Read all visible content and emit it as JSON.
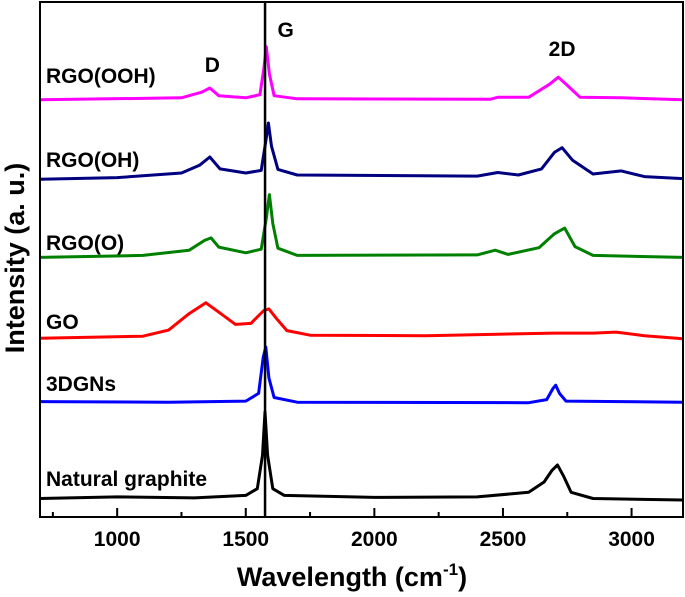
{
  "chart_data": {
    "type": "line",
    "title": "",
    "xlabel": "Wavelength (cm",
    "xlabel_sup": "-1",
    "xlabel_close": ")",
    "ylabel": "Intensity (a. u.)",
    "xlim": [
      700,
      3200
    ],
    "ylim": [
      0,
      100
    ],
    "xticks": [
      1000,
      1500,
      2000,
      2500,
      3000
    ],
    "xtick_labels": [
      "1000",
      "1500",
      "2000",
      "2500",
      "3000"
    ],
    "minor_xticks": [
      750,
      1250,
      1750,
      2250,
      2750
    ],
    "grid": false,
    "y_tick_labels_shown": false,
    "reference_line": {
      "x": 1575,
      "label": "G"
    },
    "peak_labels": [
      {
        "text": "D",
        "x": 1370
      },
      {
        "text": "G",
        "x": 1585
      },
      {
        "text": "2D",
        "x": 2730
      }
    ],
    "series": [
      {
        "name": "Natural graphite",
        "color": "#000000",
        "points": [
          [
            700,
            3.6
          ],
          [
            1000,
            3.9
          ],
          [
            1300,
            3.7
          ],
          [
            1500,
            4.2
          ],
          [
            1545,
            5.5
          ],
          [
            1565,
            12
          ],
          [
            1575,
            20.4
          ],
          [
            1585,
            12
          ],
          [
            1605,
            5.5
          ],
          [
            1650,
            4.2
          ],
          [
            2000,
            3.8
          ],
          [
            2400,
            3.9
          ],
          [
            2600,
            4.8
          ],
          [
            2660,
            6.8
          ],
          [
            2690,
            9
          ],
          [
            2712,
            10.1
          ],
          [
            2735,
            8
          ],
          [
            2765,
            4.8
          ],
          [
            2850,
            3.6
          ],
          [
            3200,
            3.3
          ]
        ]
      },
      {
        "name": "3DGNs",
        "color": "#0000ff",
        "points": [
          [
            700,
            22.4
          ],
          [
            1200,
            22.3
          ],
          [
            1500,
            22.5
          ],
          [
            1550,
            24
          ],
          [
            1568,
            31
          ],
          [
            1578,
            33
          ],
          [
            1590,
            27
          ],
          [
            1610,
            23.2
          ],
          [
            1700,
            22.3
          ],
          [
            2600,
            22.2
          ],
          [
            2670,
            22.8
          ],
          [
            2695,
            25
          ],
          [
            2705,
            25.6
          ],
          [
            2720,
            24
          ],
          [
            2745,
            22.5
          ],
          [
            3200,
            22.3
          ]
        ]
      },
      {
        "name": "GO",
        "color": "#ff0000",
        "points": [
          [
            700,
            34.7
          ],
          [
            1100,
            35.1
          ],
          [
            1200,
            36.3
          ],
          [
            1280,
            39.5
          ],
          [
            1345,
            41.6
          ],
          [
            1400,
            39.6
          ],
          [
            1460,
            37.4
          ],
          [
            1520,
            37.6
          ],
          [
            1570,
            40.1
          ],
          [
            1590,
            40.4
          ],
          [
            1620,
            38.5
          ],
          [
            1660,
            36.2
          ],
          [
            1750,
            35.3
          ],
          [
            2200,
            35.2
          ],
          [
            2700,
            35.7
          ],
          [
            2850,
            35.7
          ],
          [
            2940,
            35.9
          ],
          [
            3050,
            35.2
          ],
          [
            3200,
            34.6
          ]
        ]
      },
      {
        "name": "RGO(O)",
        "color": "#008000",
        "points": [
          [
            700,
            50.4
          ],
          [
            1100,
            50.8
          ],
          [
            1280,
            51.8
          ],
          [
            1340,
            53.7
          ],
          [
            1365,
            54.2
          ],
          [
            1395,
            52.4
          ],
          [
            1500,
            51.3
          ],
          [
            1560,
            52
          ],
          [
            1580,
            58
          ],
          [
            1592,
            62.6
          ],
          [
            1605,
            57
          ],
          [
            1625,
            52.2
          ],
          [
            1700,
            50.8
          ],
          [
            2400,
            50.9
          ],
          [
            2470,
            51.8
          ],
          [
            2520,
            51
          ],
          [
            2640,
            52.3
          ],
          [
            2700,
            55
          ],
          [
            2740,
            56.1
          ],
          [
            2780,
            52.5
          ],
          [
            2850,
            50.8
          ],
          [
            3200,
            50.4
          ]
        ]
      },
      {
        "name": "RGO(OH)",
        "color": "#000080",
        "points": [
          [
            700,
            65.6
          ],
          [
            1000,
            65.9
          ],
          [
            1250,
            66.8
          ],
          [
            1320,
            68.3
          ],
          [
            1360,
            69.9
          ],
          [
            1400,
            67.6
          ],
          [
            1500,
            66.8
          ],
          [
            1560,
            67.3
          ],
          [
            1578,
            73
          ],
          [
            1588,
            76.5
          ],
          [
            1600,
            72
          ],
          [
            1625,
            67.5
          ],
          [
            1700,
            66.4
          ],
          [
            2400,
            66.2
          ],
          [
            2480,
            66.9
          ],
          [
            2560,
            66.4
          ],
          [
            2650,
            67.6
          ],
          [
            2700,
            70.8
          ],
          [
            2730,
            71.7
          ],
          [
            2770,
            69.3
          ],
          [
            2850,
            66.6
          ],
          [
            2960,
            67.2
          ],
          [
            3050,
            66.1
          ],
          [
            3200,
            65.7
          ]
        ]
      },
      {
        "name": "RGO(OOH)",
        "color": "#ff00ff",
        "points": [
          [
            700,
            81
          ],
          [
            1250,
            81.4
          ],
          [
            1330,
            82.5
          ],
          [
            1360,
            83.3
          ],
          [
            1395,
            81.8
          ],
          [
            1500,
            81.4
          ],
          [
            1555,
            82
          ],
          [
            1570,
            87
          ],
          [
            1580,
            91.3
          ],
          [
            1592,
            86
          ],
          [
            1610,
            81.8
          ],
          [
            1700,
            81.2
          ],
          [
            2450,
            81.1
          ],
          [
            2480,
            81.5
          ],
          [
            2600,
            81.5
          ],
          [
            2680,
            84
          ],
          [
            2715,
            85.4
          ],
          [
            2750,
            83.8
          ],
          [
            2800,
            81.5
          ],
          [
            2960,
            81.4
          ],
          [
            3200,
            81
          ]
        ]
      }
    ]
  }
}
